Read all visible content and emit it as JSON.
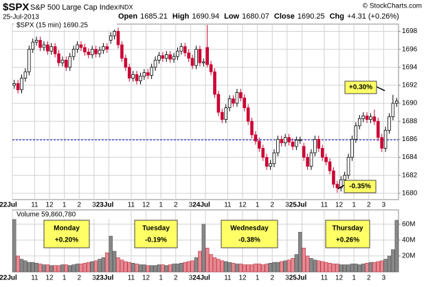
{
  "chart_data": {
    "type": "candlestick",
    "symbol": "$SPX",
    "title": "S&P 500 Large Cap Index",
    "exchange": "INDX",
    "date": "25-Jul-2013",
    "credit": "© StockCharts.com",
    "quote": [
      {
        "label": "Open",
        "value": 1685.21
      },
      {
        "label": "High",
        "value": 1690.94
      },
      {
        "label": "Low",
        "value": 1680.07
      },
      {
        "label": "Close",
        "value": 1690.25
      },
      {
        "label": "Chg",
        "value": "+4.31 (+0.26%)"
      }
    ],
    "series_label": "$SPX (15 min) 1690.25",
    "volume_label": "Volume 59,860,780",
    "x_labels": [
      "22Jul",
      "11",
      "12",
      "1",
      "2",
      "3",
      "23Jul",
      "11",
      "12",
      "1",
      "2",
      "3",
      "24Jul",
      "11",
      "12",
      "1",
      "2",
      "3",
      "25Jul",
      "11",
      "12",
      "1",
      "2",
      "3"
    ],
    "ylim": [
      1679.3,
      1698.8
    ],
    "yticks": [
      1680,
      1682,
      1684,
      1686,
      1688,
      1690,
      1692,
      1694,
      1696,
      1698
    ],
    "y2lim": [
      0,
      78
    ],
    "y2ticks": [
      {
        "value": 20,
        "label": "20M"
      },
      {
        "value": 40,
        "label": "40M"
      },
      {
        "value": 60,
        "label": "60M"
      }
    ],
    "grid": true,
    "up_color": "#ffffff",
    "down_color": "#cc0033",
    "volume_up_color": "#888888",
    "volume_down_color": "#e58a92",
    "ref_line": 1685.94,
    "ref_color": "#0000cc",
    "candles": [
      [
        1692.0,
        1692.6,
        1691.6,
        1692.2
      ],
      [
        1692.2,
        1692.6,
        1691.1,
        1691.5
      ],
      [
        1691.5,
        1693.2,
        1691.1,
        1692.8
      ],
      [
        1692.8,
        1693.9,
        1692.4,
        1693.5
      ],
      [
        1693.5,
        1696.4,
        1693.1,
        1696.0
      ],
      [
        1696.0,
        1697.2,
        1695.6,
        1696.8
      ],
      [
        1696.8,
        1697.4,
        1696.4,
        1697.0
      ],
      [
        1697.0,
        1697.4,
        1695.8,
        1696.2
      ],
      [
        1696.2,
        1696.9,
        1695.8,
        1696.5
      ],
      [
        1696.5,
        1696.9,
        1695.4,
        1695.8
      ],
      [
        1695.8,
        1696.7,
        1695.4,
        1696.3
      ],
      [
        1696.3,
        1696.7,
        1695.1,
        1695.5
      ],
      [
        1695.5,
        1695.9,
        1694.1,
        1694.5
      ],
      [
        1694.5,
        1695.2,
        1694.1,
        1694.8
      ],
      [
        1694.8,
        1695.2,
        1693.6,
        1694.0
      ],
      [
        1694.0,
        1695.6,
        1693.6,
        1695.2
      ],
      [
        1695.2,
        1696.4,
        1694.8,
        1696.0
      ],
      [
        1696.0,
        1696.9,
        1695.6,
        1696.5
      ],
      [
        1696.5,
        1696.9,
        1695.8,
        1696.2
      ],
      [
        1696.2,
        1696.6,
        1695.3,
        1695.7
      ],
      [
        1695.7,
        1696.1,
        1695.0,
        1695.4
      ],
      [
        1695.4,
        1696.4,
        1695.0,
        1696.0
      ],
      [
        1696.0,
        1696.4,
        1695.1,
        1695.5
      ],
      [
        1695.5,
        1696.3,
        1695.1,
        1695.9
      ],
      [
        1695.9,
        1696.7,
        1695.5,
        1696.3
      ],
      [
        1696.3,
        1696.7,
        1695.6,
        1696.0
      ],
      [
        1697.0,
        1697.9,
        1696.6,
        1697.5
      ],
      [
        1697.5,
        1698.4,
        1697.1,
        1698.0
      ],
      [
        1698.0,
        1698.4,
        1696.1,
        1696.5
      ],
      [
        1696.5,
        1696.9,
        1694.6,
        1695.0
      ],
      [
        1695.0,
        1695.4,
        1693.6,
        1694.0
      ],
      [
        1694.0,
        1694.4,
        1692.4,
        1692.8
      ],
      [
        1692.8,
        1693.6,
        1692.4,
        1693.2
      ],
      [
        1693.2,
        1693.6,
        1692.1,
        1692.5
      ],
      [
        1692.5,
        1693.4,
        1692.1,
        1693.0
      ],
      [
        1693.0,
        1693.8,
        1692.6,
        1693.4
      ],
      [
        1693.4,
        1693.8,
        1692.7,
        1693.1
      ],
      [
        1693.1,
        1694.4,
        1692.7,
        1694.0
      ],
      [
        1694.0,
        1695.2,
        1693.6,
        1694.8
      ],
      [
        1694.8,
        1695.7,
        1694.4,
        1695.3
      ],
      [
        1695.3,
        1695.7,
        1694.6,
        1695.0
      ],
      [
        1695.0,
        1695.8,
        1694.6,
        1695.4
      ],
      [
        1695.4,
        1695.8,
        1694.5,
        1694.9
      ],
      [
        1694.9,
        1695.6,
        1694.5,
        1695.2
      ],
      [
        1695.2,
        1696.2,
        1694.8,
        1695.8
      ],
      [
        1695.8,
        1696.7,
        1695.4,
        1696.3
      ],
      [
        1696.3,
        1696.7,
        1695.2,
        1695.6
      ],
      [
        1695.6,
        1696.0,
        1694.6,
        1695.0
      ],
      [
        1695.0,
        1695.4,
        1693.8,
        1694.2
      ],
      [
        1694.2,
        1696.4,
        1693.8,
        1696.0
      ],
      [
        1696.0,
        1696.4,
        1694.1,
        1694.5
      ],
      [
        1694.5,
        1695.0,
        1694.1,
        1694.6
      ],
      [
        1696.2,
        1698.7,
        1694.0,
        1694.3
      ],
      [
        1694.3,
        1694.7,
        1693.1,
        1693.5
      ],
      [
        1693.5,
        1693.9,
        1690.6,
        1691.0
      ],
      [
        1691.0,
        1691.4,
        1688.6,
        1689.0
      ],
      [
        1689.0,
        1689.4,
        1687.8,
        1688.2
      ],
      [
        1688.2,
        1689.9,
        1687.8,
        1689.5
      ],
      [
        1689.5,
        1690.9,
        1689.1,
        1690.5
      ],
      [
        1690.5,
        1690.9,
        1689.6,
        1690.0
      ],
      [
        1690.0,
        1691.6,
        1689.6,
        1691.2
      ],
      [
        1691.2,
        1691.6,
        1690.2,
        1690.6
      ],
      [
        1690.6,
        1691.0,
        1689.1,
        1689.5
      ],
      [
        1689.5,
        1689.9,
        1687.6,
        1688.0
      ],
      [
        1688.0,
        1688.4,
        1686.1,
        1686.5
      ],
      [
        1686.5,
        1686.9,
        1685.4,
        1685.8
      ],
      [
        1685.8,
        1686.2,
        1684.6,
        1685.0
      ],
      [
        1685.0,
        1685.4,
        1683.6,
        1684.0
      ],
      [
        1684.0,
        1684.4,
        1682.6,
        1683.0
      ],
      [
        1683.0,
        1683.7,
        1682.6,
        1683.3
      ],
      [
        1683.3,
        1684.9,
        1682.9,
        1684.5
      ],
      [
        1684.5,
        1686.4,
        1684.1,
        1686.0
      ],
      [
        1686.0,
        1686.4,
        1685.2,
        1685.6
      ],
      [
        1685.6,
        1686.6,
        1685.2,
        1686.2
      ],
      [
        1686.2,
        1686.6,
        1685.3,
        1685.7
      ],
      [
        1685.7,
        1686.1,
        1684.8,
        1685.2
      ],
      [
        1685.2,
        1686.3,
        1684.8,
        1685.9
      ],
      [
        1685.9,
        1686.3,
        1685.5,
        1685.94
      ],
      [
        1685.21,
        1685.6,
        1683.6,
        1684.0
      ],
      [
        1684.0,
        1684.4,
        1682.6,
        1683.0
      ],
      [
        1683.0,
        1684.9,
        1682.6,
        1684.5
      ],
      [
        1684.5,
        1686.4,
        1684.1,
        1686.0
      ],
      [
        1686.0,
        1686.4,
        1684.6,
        1685.0
      ],
      [
        1685.0,
        1685.4,
        1683.6,
        1684.0
      ],
      [
        1684.0,
        1684.4,
        1683.1,
        1683.5
      ],
      [
        1683.5,
        1683.9,
        1682.1,
        1682.5
      ],
      [
        1682.5,
        1682.9,
        1680.6,
        1681.0
      ],
      [
        1681.0,
        1681.4,
        1680.07,
        1680.6
      ],
      [
        1680.6,
        1681.9,
        1680.2,
        1681.5
      ],
      [
        1681.5,
        1682.4,
        1681.1,
        1682.0
      ],
      [
        1682.0,
        1684.4,
        1681.6,
        1684.0
      ],
      [
        1684.0,
        1686.4,
        1683.6,
        1686.0
      ],
      [
        1686.0,
        1687.9,
        1685.6,
        1687.5
      ],
      [
        1687.5,
        1688.7,
        1687.1,
        1688.3
      ],
      [
        1688.3,
        1689.0,
        1687.9,
        1688.6
      ],
      [
        1688.6,
        1689.0,
        1687.8,
        1688.2
      ],
      [
        1688.2,
        1688.9,
        1687.8,
        1688.5
      ],
      [
        1688.5,
        1689.3,
        1687.6,
        1688.0
      ],
      [
        1688.0,
        1688.4,
        1685.8,
        1686.2
      ],
      [
        1686.2,
        1686.6,
        1684.6,
        1685.0
      ],
      [
        1685.0,
        1687.4,
        1684.6,
        1687.0
      ],
      [
        1687.0,
        1688.9,
        1686.6,
        1688.5
      ],
      [
        1688.5,
        1690.94,
        1688.1,
        1690.0
      ],
      [
        1690.0,
        1690.6,
        1689.6,
        1690.25
      ]
    ],
    "volume": [
      66,
      20,
      16,
      14,
      12,
      12,
      11,
      10,
      9,
      9,
      8,
      8,
      8,
      9,
      9,
      8,
      9,
      10,
      10,
      11,
      12,
      13,
      14,
      16,
      18,
      24,
      45,
      26,
      18,
      15,
      13,
      12,
      11,
      10,
      9,
      9,
      8,
      8,
      8,
      9,
      9,
      8,
      9,
      10,
      10,
      11,
      12,
      13,
      14,
      18,
      26,
      60,
      30,
      22,
      18,
      16,
      14,
      13,
      12,
      11,
      10,
      10,
      9,
      9,
      9,
      10,
      10,
      9,
      10,
      11,
      12,
      12,
      13,
      14,
      15,
      17,
      22,
      50,
      30,
      20,
      17,
      15,
      14,
      13,
      12,
      11,
      10,
      10,
      9,
      9,
      9,
      10,
      10,
      9,
      10,
      11,
      12,
      12,
      13,
      14,
      16,
      20,
      28,
      65
    ],
    "annotations": [
      "+0.30%",
      "-0.35%"
    ],
    "day_labels": [
      {
        "day": "Monday",
        "change": "+0.20%"
      },
      {
        "day": "Tuesday",
        "change": "-0.19%"
      },
      {
        "day": "Wednesday",
        "change": "-0.38%"
      },
      {
        "day": "Thursday",
        "change": "+0.26%"
      }
    ]
  }
}
